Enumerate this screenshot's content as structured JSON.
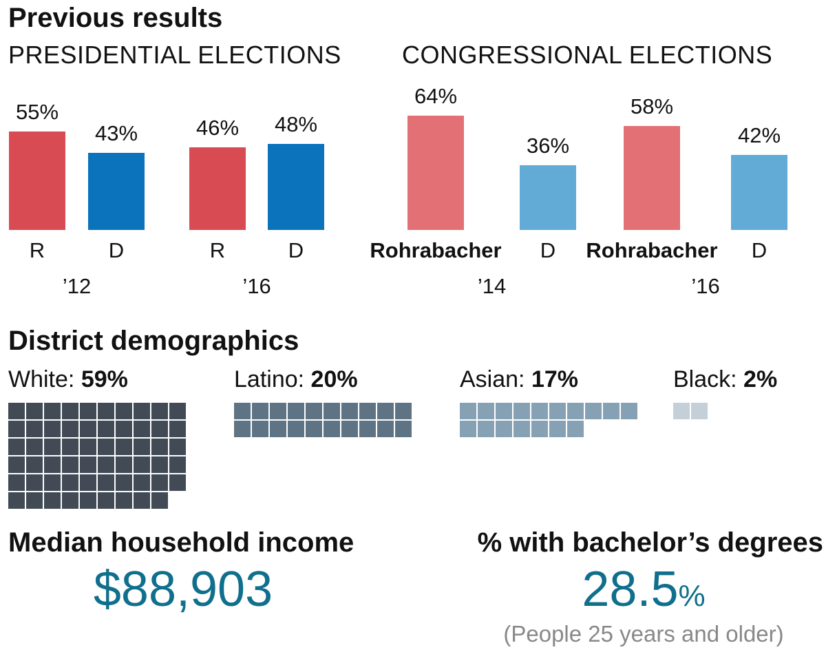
{
  "headings": {
    "previous_results": "Previous results",
    "presidential": "PRESIDENTIAL ELECTIONS",
    "congressional": "CONGRESSIONAL ELECTIONS",
    "demographics": "District demographics",
    "income": "Median household income",
    "bachelors": "% with bachelor’s degrees"
  },
  "chart_data": [
    {
      "type": "bar",
      "title": "PRESIDENTIAL ELECTIONS",
      "groups": [
        {
          "year": "’12",
          "bars": [
            {
              "label": "R",
              "value": 55,
              "display": "55%"
            },
            {
              "label": "D",
              "value": 43,
              "display": "43%"
            }
          ]
        },
        {
          "year": "’16",
          "bars": [
            {
              "label": "R",
              "value": 46,
              "display": "46%"
            },
            {
              "label": "D",
              "value": 48,
              "display": "48%"
            }
          ]
        }
      ],
      "colors": {
        "R": "#d94b53",
        "D": "#0a73bb"
      }
    },
    {
      "type": "bar",
      "title": "CONGRESSIONAL ELECTIONS",
      "groups": [
        {
          "year": "’14",
          "bars": [
            {
              "label": "Rohrabacher",
              "value": 64,
              "display": "64%"
            },
            {
              "label": "D",
              "value": 36,
              "display": "36%"
            }
          ]
        },
        {
          "year": "’16",
          "bars": [
            {
              "label": "Rohrabacher",
              "value": 58,
              "display": "58%"
            },
            {
              "label": "D",
              "value": 42,
              "display": "42%"
            }
          ]
        }
      ],
      "colors": {
        "R": "#e27074",
        "D": "#63abd7"
      }
    },
    {
      "type": "waffle",
      "title": "District demographics",
      "groups": [
        {
          "name": "White",
          "display": "59%",
          "value": 59,
          "color": "#414a55"
        },
        {
          "name": "Latino",
          "display": "20%",
          "value": 20,
          "color": "#5e7484"
        },
        {
          "name": "Asian",
          "display": "17%",
          "value": 17,
          "color": "#87a1b4"
        },
        {
          "name": "Black",
          "display": "2%",
          "value": 2,
          "color": "#c5cfd7"
        }
      ]
    }
  ],
  "income": {
    "value": "$88,903",
    "color": "#0f6f8c"
  },
  "bachelors": {
    "value": "28.5",
    "unit": "%",
    "note": "(People 25 years and older)",
    "color": "#0f6f8c"
  }
}
